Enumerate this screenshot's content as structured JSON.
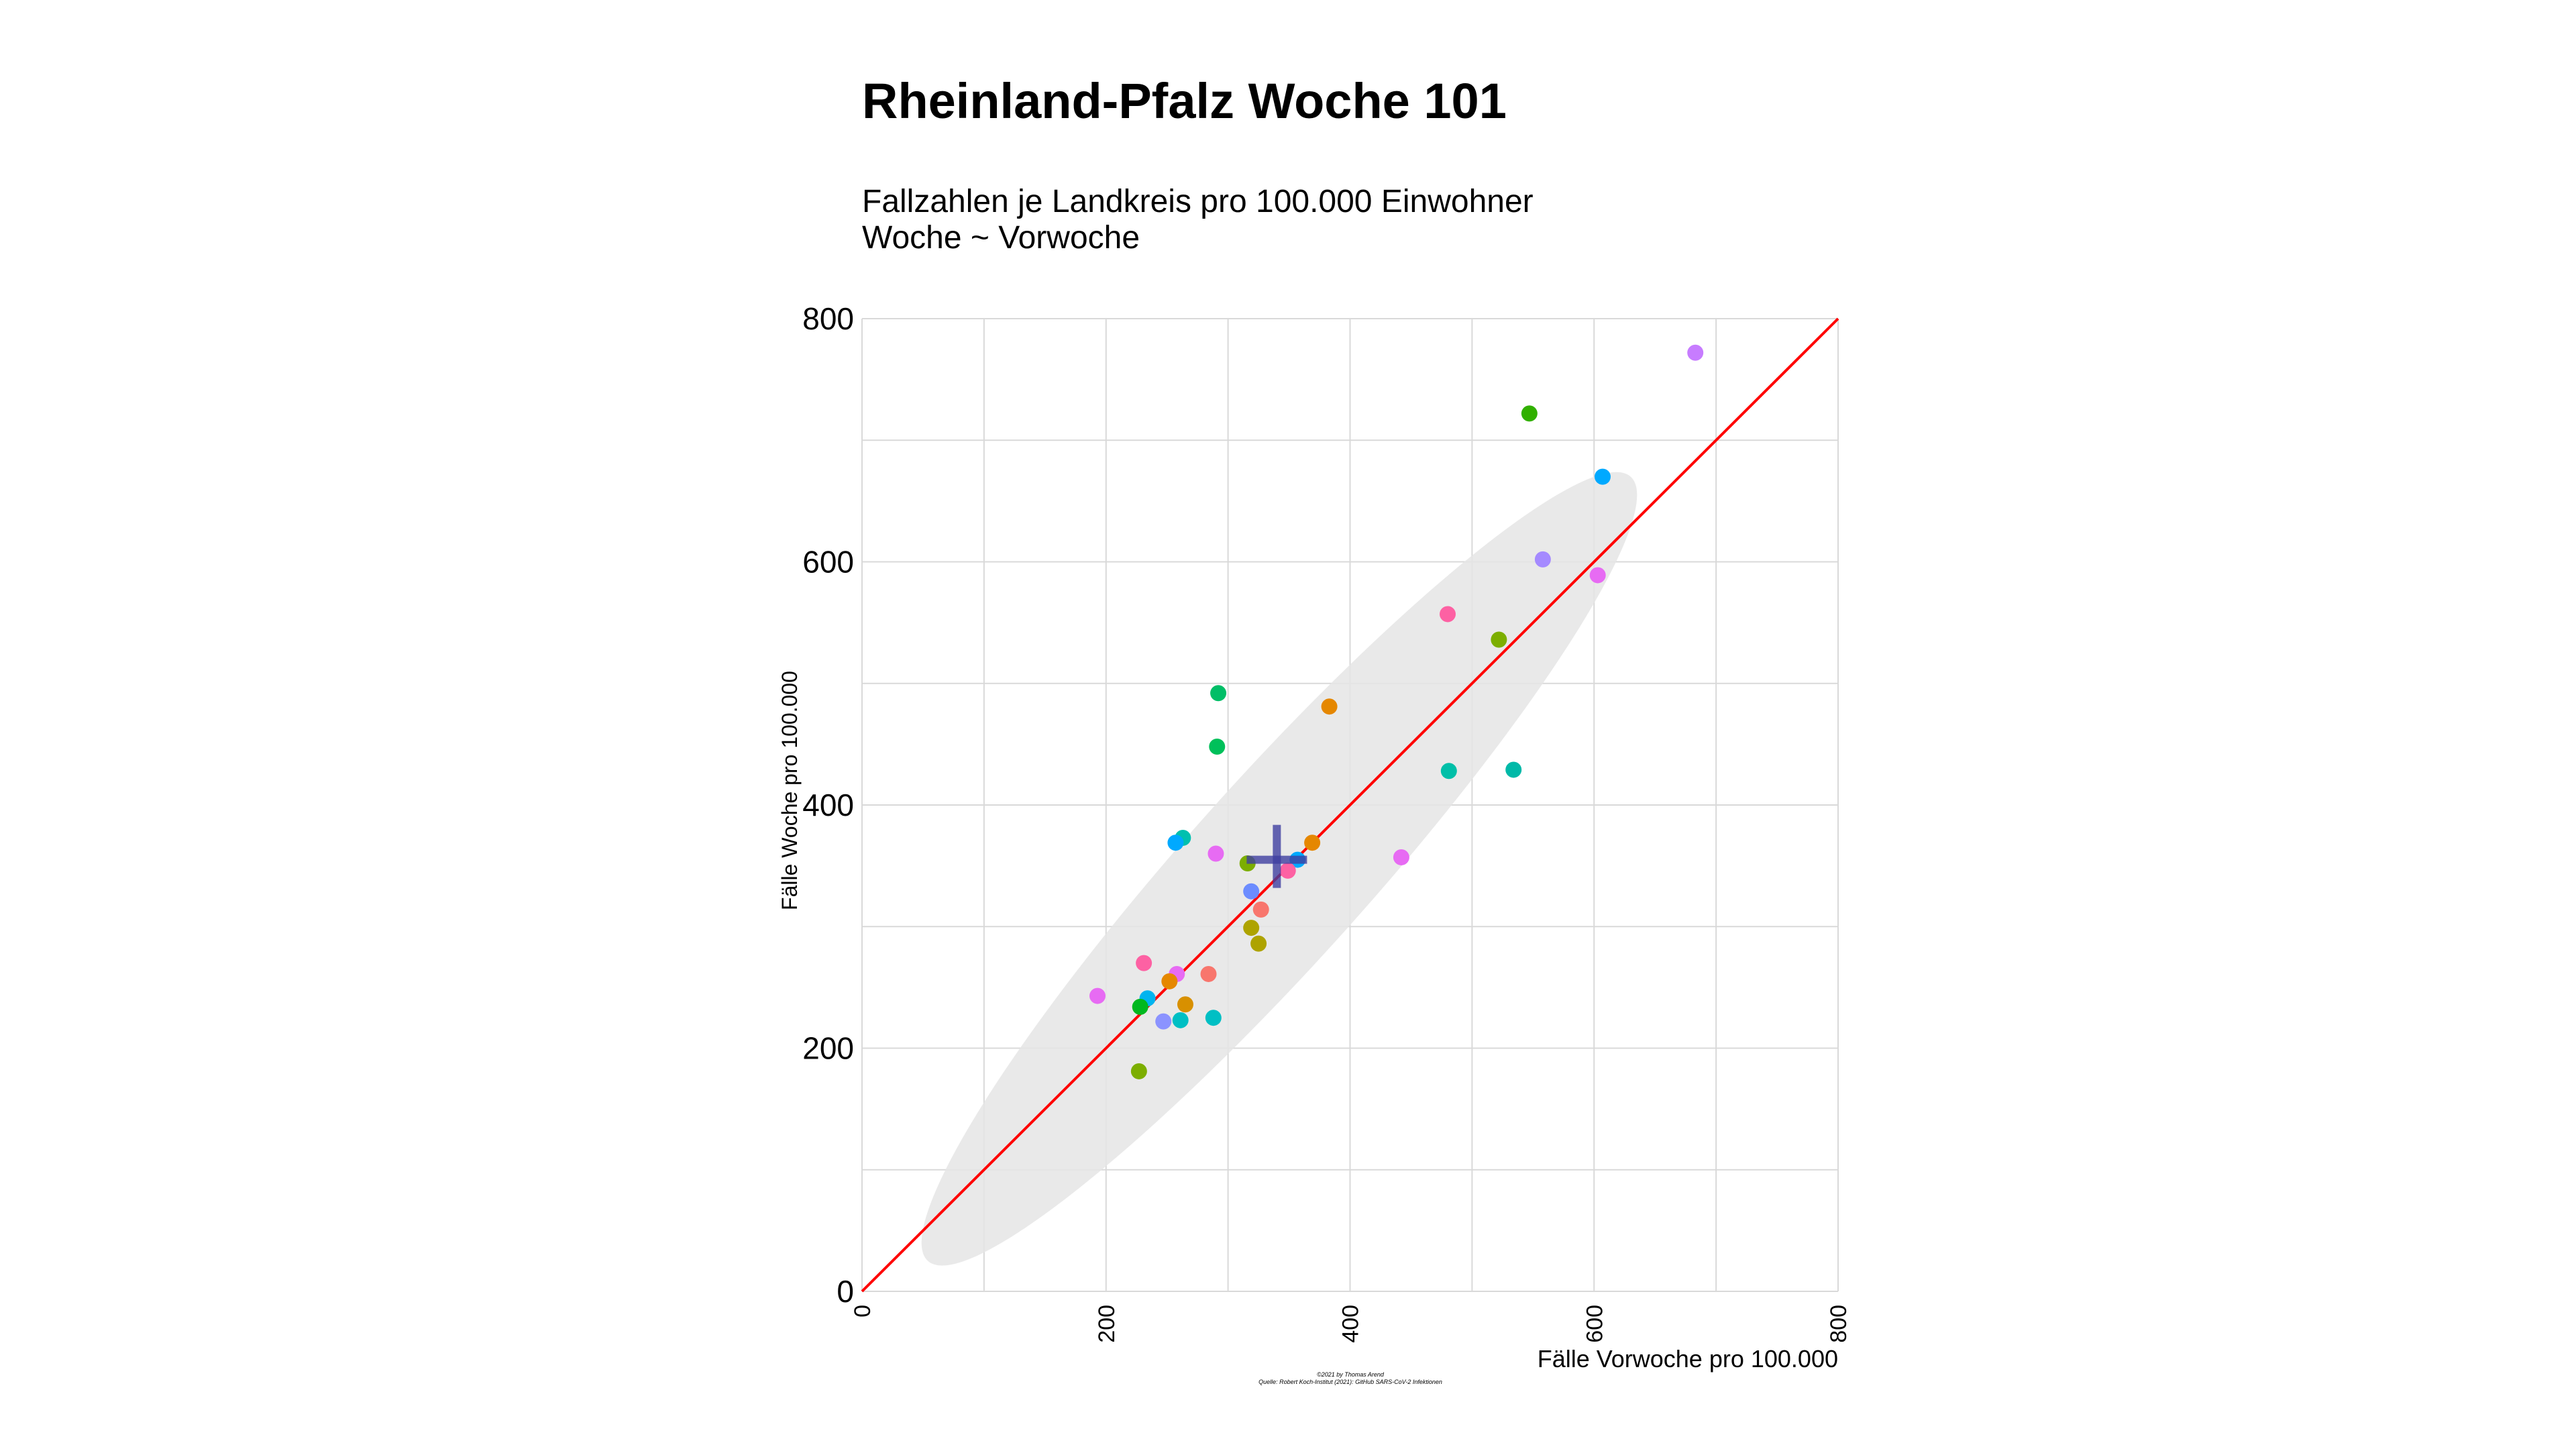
{
  "chart_data": {
    "type": "scatter",
    "title": "Rheinland-Pfalz Woche 101",
    "subtitle": [
      "Fallzahlen je Landkreis pro 100.000 Einwohner",
      "Woche ~ Vorwoche"
    ],
    "xlabel": "Fälle Vorwoche pro 100.000",
    "ylabel": "Fälle Woche pro 100.000",
    "xlim": [
      0,
      800
    ],
    "ylim": [
      0,
      800
    ],
    "x_ticks": [
      0,
      200,
      400,
      600,
      800
    ],
    "y_ticks": [
      0,
      200,
      400,
      600,
      800
    ],
    "x_tick_labels": [
      "0",
      "200",
      "400",
      "600",
      "800"
    ],
    "y_tick_labels": [
      "0",
      "200",
      "400",
      "600",
      "800"
    ],
    "grid": true,
    "reference_line": {
      "label": "y = x",
      "from": [
        0,
        0
      ],
      "to": [
        800,
        800
      ],
      "color": "#ff0000"
    },
    "ellipse": {
      "center": [
        342,
        347
      ],
      "points_along_major_axis": [
        [
          54,
          25
        ],
        [
          630,
          670
        ]
      ],
      "minor_half_width": 74,
      "color": "#e5e5e5"
    },
    "mean_marker": {
      "x": 340,
      "y": 355,
      "color": "#3f3fa0"
    },
    "points": [
      {
        "x": 683,
        "y": 772,
        "color": "#c77cff"
      },
      {
        "x": 547,
        "y": 722,
        "color": "#31b000"
      },
      {
        "x": 607,
        "y": 670,
        "color": "#00a9ff"
      },
      {
        "x": 558,
        "y": 602,
        "color": "#a58aff"
      },
      {
        "x": 603,
        "y": 589,
        "color": "#e76bf3"
      },
      {
        "x": 480,
        "y": 557,
        "color": "#fd61a3"
      },
      {
        "x": 522,
        "y": 536,
        "color": "#7cae00"
      },
      {
        "x": 292,
        "y": 492,
        "color": "#00be67"
      },
      {
        "x": 383,
        "y": 481,
        "color": "#e58700"
      },
      {
        "x": 291,
        "y": 448,
        "color": "#00c05a"
      },
      {
        "x": 481,
        "y": 428,
        "color": "#00bfa8"
      },
      {
        "x": 534,
        "y": 429,
        "color": "#00b9a8"
      },
      {
        "x": 263,
        "y": 373,
        "color": "#00c0af"
      },
      {
        "x": 257,
        "y": 369,
        "color": "#00a9ff"
      },
      {
        "x": 369,
        "y": 369,
        "color": "#e58700"
      },
      {
        "x": 290,
        "y": 360,
        "color": "#e76bf3"
      },
      {
        "x": 442,
        "y": 357,
        "color": "#e76bf3"
      },
      {
        "x": 357,
        "y": 355,
        "color": "#00a9ff"
      },
      {
        "x": 316,
        "y": 352,
        "color": "#7cae00"
      },
      {
        "x": 349,
        "y": 346,
        "color": "#fd61a3"
      },
      {
        "x": 319,
        "y": 329,
        "color": "#6c8cff"
      },
      {
        "x": 327,
        "y": 314,
        "color": "#f8766d"
      },
      {
        "x": 319,
        "y": 299,
        "color": "#aea300"
      },
      {
        "x": 325,
        "y": 286,
        "color": "#aea300"
      },
      {
        "x": 231,
        "y": 270,
        "color": "#fd61a3"
      },
      {
        "x": 258,
        "y": 261,
        "color": "#e76bf3"
      },
      {
        "x": 284,
        "y": 261,
        "color": "#f8766d"
      },
      {
        "x": 252,
        "y": 255,
        "color": "#e58700"
      },
      {
        "x": 193,
        "y": 243,
        "color": "#e76bf3"
      },
      {
        "x": 234,
        "y": 241,
        "color": "#00b4ef"
      },
      {
        "x": 265,
        "y": 236,
        "color": "#d89000"
      },
      {
        "x": 228,
        "y": 234,
        "color": "#00b81f"
      },
      {
        "x": 288,
        "y": 225,
        "color": "#00bfc4"
      },
      {
        "x": 261,
        "y": 223,
        "color": "#00bfc4"
      },
      {
        "x": 247,
        "y": 222,
        "color": "#8b93ff"
      },
      {
        "x": 227,
        "y": 181,
        "color": "#7cae00"
      }
    ],
    "caption": [
      "©2021 by Thomas Arend",
      "Quelle: Robert Koch-Institut (2021): GitHub SARS-CoV-2 Infektionen"
    ]
  }
}
